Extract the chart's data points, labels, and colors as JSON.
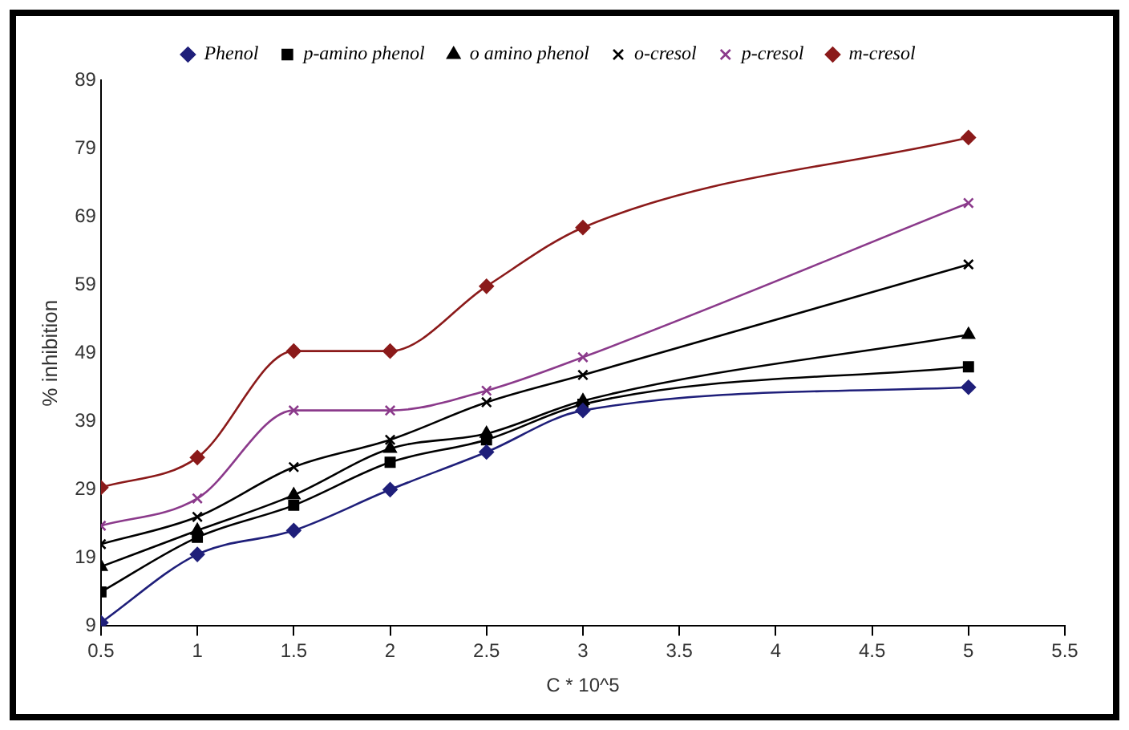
{
  "chart_data": {
    "type": "line",
    "xlabel": "C * 10^5",
    "ylabel": "% inhibition",
    "x": [
      0.5,
      1,
      1.5,
      2,
      2.5,
      3,
      5
    ],
    "xlim": [
      0.5,
      5.5
    ],
    "xticks": [
      0.5,
      1,
      1.5,
      2,
      2.5,
      3,
      3.5,
      4,
      4.5,
      5,
      5.5
    ],
    "ylim": [
      9,
      89
    ],
    "yticks": [
      9,
      19,
      29,
      39,
      49,
      59,
      69,
      79,
      89
    ],
    "grid": false,
    "legend": "top",
    "line_style": "solid",
    "series": [
      {
        "name": "Phenol",
        "color": "#1f1f7a",
        "marker": "diamond",
        "values": [
          9.5,
          19.5,
          23,
          29,
          34.5,
          40.6,
          44
        ]
      },
      {
        "name": "p-amino phenol",
        "color": "#000000",
        "marker": "square",
        "values": [
          14,
          22,
          26.7,
          33,
          36.3,
          41.5,
          47
        ]
      },
      {
        "name": "o amino phenol",
        "color": "#000000",
        "marker": "triangle",
        "values": [
          17.7,
          23,
          28.2,
          35,
          37.2,
          42,
          51.7
        ]
      },
      {
        "name": "o-cresol",
        "color": "#000000",
        "marker": "cross",
        "values": [
          21,
          25,
          32.3,
          36.3,
          41.8,
          45.8,
          62
        ]
      },
      {
        "name": "p-cresol",
        "color": "#8b3a8b",
        "marker": "cross",
        "values": [
          23.7,
          27.7,
          40.6,
          40.6,
          43.5,
          48.4,
          71
        ]
      },
      {
        "name": "m-cresol",
        "color": "#8b1a1a",
        "marker": "diamond",
        "values": [
          29.3,
          33.7,
          49.3,
          49.3,
          58.8,
          67.4,
          80.6
        ]
      }
    ]
  }
}
